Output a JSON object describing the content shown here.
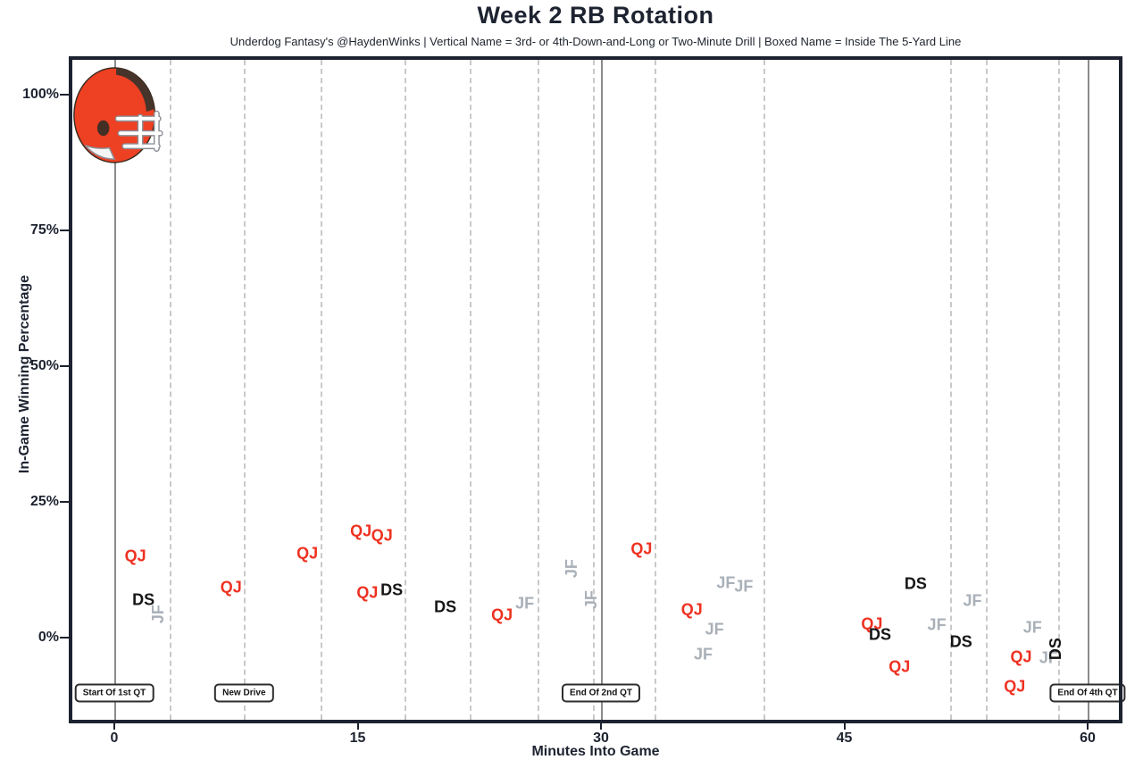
{
  "title": "Week 2 RB Rotation",
  "subtitle": "Underdog Fantasy's @HaydenWinks | Vertical Name = 3rd- or 4th-Down-and-Long or Two-Minute Drill | Boxed Name = Inside The 5-Yard Line",
  "chart_data": {
    "type": "scatter",
    "title": "Week 2 RB Rotation",
    "xlabel": "Minutes Into Game",
    "ylabel": "In-Game Winning Percentage",
    "xlim": [
      -2.8,
      62.1
    ],
    "ylim": [
      -15.8,
      107
    ],
    "x_ticks": [
      0,
      15,
      30,
      45,
      60
    ],
    "y_ticks": [
      0,
      25,
      50,
      75,
      100
    ],
    "y_tick_labels": [
      "0%",
      "25%",
      "50%",
      "75%",
      "100%"
    ],
    "grid": "vertical-dashed-new-drive-lines-only",
    "legend": "none",
    "team_logo": "cleveland-browns-helmet",
    "annotation_notes": {
      "vertical_name": "3rd- or 4th-Down-and-Long or Two-Minute Drill",
      "boxed_name": "Inside The 5-Yard Line"
    },
    "players": [
      {
        "initials": "QJ",
        "color": "#ee3120"
      },
      {
        "initials": "DS",
        "color": "#161616"
      },
      {
        "initials": "JF",
        "color": "#a9b0b8"
      }
    ],
    "points": [
      {
        "p": "QJ",
        "min": 1.3,
        "pct": 15.0,
        "vertical": false
      },
      {
        "p": "DS",
        "min": 1.8,
        "pct": 6.9,
        "vertical": false
      },
      {
        "p": "JF",
        "min": 2.7,
        "pct": 4.3,
        "vertical": true
      },
      {
        "p": "QJ",
        "min": 7.2,
        "pct": 9.2,
        "vertical": false
      },
      {
        "p": "QJ",
        "min": 11.9,
        "pct": 15.5,
        "vertical": false
      },
      {
        "p": "QJ",
        "min": 15.2,
        "pct": 19.6,
        "vertical": false
      },
      {
        "p": "QJ",
        "min": 16.5,
        "pct": 18.8,
        "vertical": false
      },
      {
        "p": "QJ",
        "min": 15.6,
        "pct": 8.2,
        "vertical": false
      },
      {
        "p": "DS",
        "min": 17.1,
        "pct": 8.7,
        "vertical": false
      },
      {
        "p": "DS",
        "min": 20.4,
        "pct": 5.6,
        "vertical": false
      },
      {
        "p": "QJ",
        "min": 23.9,
        "pct": 4.1,
        "vertical": false
      },
      {
        "p": "JF",
        "min": 25.3,
        "pct": 6.3,
        "vertical": false
      },
      {
        "p": "JF",
        "min": 28.2,
        "pct": 12.7,
        "vertical": true
      },
      {
        "p": "JF",
        "min": 29.4,
        "pct": 6.9,
        "vertical": true
      },
      {
        "p": "QJ",
        "min": 32.5,
        "pct": 16.3,
        "vertical": false
      },
      {
        "p": "QJ",
        "min": 35.6,
        "pct": 5.1,
        "vertical": false
      },
      {
        "p": "JF",
        "min": 37.7,
        "pct": 10.0,
        "vertical": false
      },
      {
        "p": "JF",
        "min": 38.8,
        "pct": 9.4,
        "vertical": false
      },
      {
        "p": "JF",
        "min": 37.0,
        "pct": 1.5,
        "vertical": false
      },
      {
        "p": "JF",
        "min": 36.3,
        "pct": -3.1,
        "vertical": false
      },
      {
        "p": "QJ",
        "min": 46.7,
        "pct": 2.5,
        "vertical": false
      },
      {
        "p": "DS",
        "min": 47.2,
        "pct": 0.5,
        "vertical": false
      },
      {
        "p": "QJ",
        "min": 48.4,
        "pct": -5.4,
        "vertical": false
      },
      {
        "p": "DS",
        "min": 49.4,
        "pct": 9.9,
        "vertical": false
      },
      {
        "p": "JF",
        "min": 50.7,
        "pct": 2.3,
        "vertical": false
      },
      {
        "p": "DS",
        "min": 52.2,
        "pct": -0.8,
        "vertical": false
      },
      {
        "p": "JF",
        "min": 52.9,
        "pct": 6.7,
        "vertical": false
      },
      {
        "p": "JF",
        "min": 56.6,
        "pct": 1.8,
        "vertical": false
      },
      {
        "p": "QJ",
        "min": 55.9,
        "pct": -3.6,
        "vertical": false
      },
      {
        "p": "JF",
        "min": 57.6,
        "pct": -3.8,
        "vertical": false
      },
      {
        "p": "DS",
        "min": 58.0,
        "pct": -2.1,
        "vertical": true
      },
      {
        "p": "QJ",
        "min": 55.5,
        "pct": -9.0,
        "vertical": false
      }
    ],
    "new_drive_minutes": [
      3.4,
      8.0,
      12.7,
      17.9,
      21.9,
      26.1,
      29.5,
      33.3,
      40.0,
      51.5,
      53.7,
      58.2
    ],
    "quarter_lines": [
      {
        "min": 0,
        "label": "Start Of 1st QT"
      },
      {
        "min": 30,
        "label": "End Of 2nd QT"
      },
      {
        "min": 60,
        "label": "End Of 4th QT"
      }
    ],
    "boxed_labels": [
      {
        "min": 0,
        "label": "Start Of 1st QT"
      },
      {
        "min": 8,
        "label": "New Drive"
      },
      {
        "min": 30,
        "label": "End Of 2nd QT"
      },
      {
        "min": 60,
        "label": "End Of 4th QT"
      }
    ]
  },
  "colors": {
    "qj": "#ee3120",
    "ds": "#161616",
    "jf": "#a9b0b8",
    "frame": "#1d2230",
    "dashed_grid": "#c9c9c9",
    "solid_grid": "#8b8b8b",
    "helmet_orange": "#ee4023",
    "helmet_brown": "#46342a"
  }
}
